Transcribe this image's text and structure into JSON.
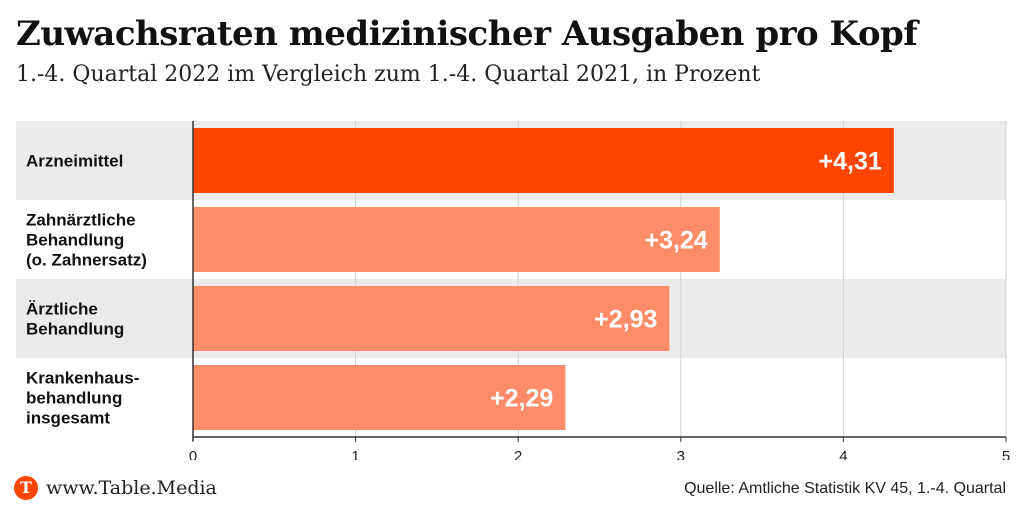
{
  "header": {
    "title": "Zuwachsraten medizinischer Ausgaben pro Kopf",
    "subtitle": "1.-4. Quartal 2022 im Vergleich zum 1.-4. Quartal 2021, in Prozent"
  },
  "chart_data": {
    "type": "bar",
    "orientation": "horizontal",
    "categories": [
      [
        "Arzneimittel"
      ],
      [
        "Zahnärztliche",
        "Behandlung",
        "(o. Zahnersatz)"
      ],
      [
        "Ärztliche",
        "Behandlung"
      ],
      [
        "Krankenhaus-",
        "behandlung",
        "insgesamt"
      ]
    ],
    "values": [
      4.31,
      3.24,
      2.93,
      2.29
    ],
    "data_labels": [
      "+4,31",
      "+3,24",
      "+2,93",
      "+2,29"
    ],
    "xlim": [
      0,
      5
    ],
    "x_ticks": [
      0,
      1,
      2,
      3,
      4,
      5
    ],
    "grid": true,
    "colors": {
      "highlight": "#ff4500",
      "bar": "#ff8c69",
      "band": "#ebebeb",
      "grid": "#d0d0d0",
      "axis": "#333333"
    }
  },
  "footer": {
    "logo_letter": "T",
    "site": "www.Table.Media",
    "source": "Quelle: Amtliche Statistik KV 45, 1.-4. Quartal"
  }
}
